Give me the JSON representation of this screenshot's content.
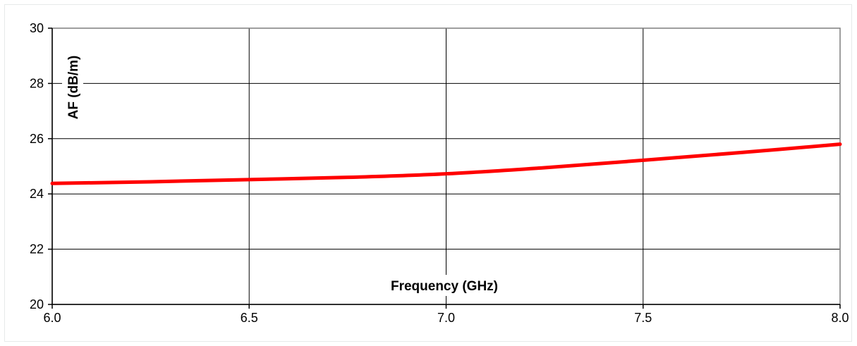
{
  "chart_data": {
    "type": "line",
    "title": "",
    "xlabel": "Frequency (GHz)",
    "ylabel": "AF (dB/m)",
    "xlim": [
      6.0,
      8.0
    ],
    "ylim": [
      20,
      30
    ],
    "x_ticks": [
      6.0,
      6.5,
      7.0,
      7.5,
      8.0
    ],
    "x_tick_labels": [
      "6.0",
      "6.5",
      "7.0",
      "7.5",
      "8.0"
    ],
    "y_ticks": [
      20,
      22,
      24,
      26,
      28,
      30
    ],
    "y_tick_labels": [
      "20",
      "22",
      "24",
      "26",
      "28",
      "30"
    ],
    "grid": true,
    "legend": "none",
    "series": [
      {
        "color": "#ff0000",
        "x": [
          6.0,
          6.25,
          6.5,
          6.75,
          7.0,
          7.25,
          7.5,
          7.75,
          8.0
        ],
        "y": [
          24.38,
          24.44,
          24.52,
          24.6,
          24.73,
          24.95,
          25.22,
          25.5,
          25.8
        ]
      }
    ]
  }
}
